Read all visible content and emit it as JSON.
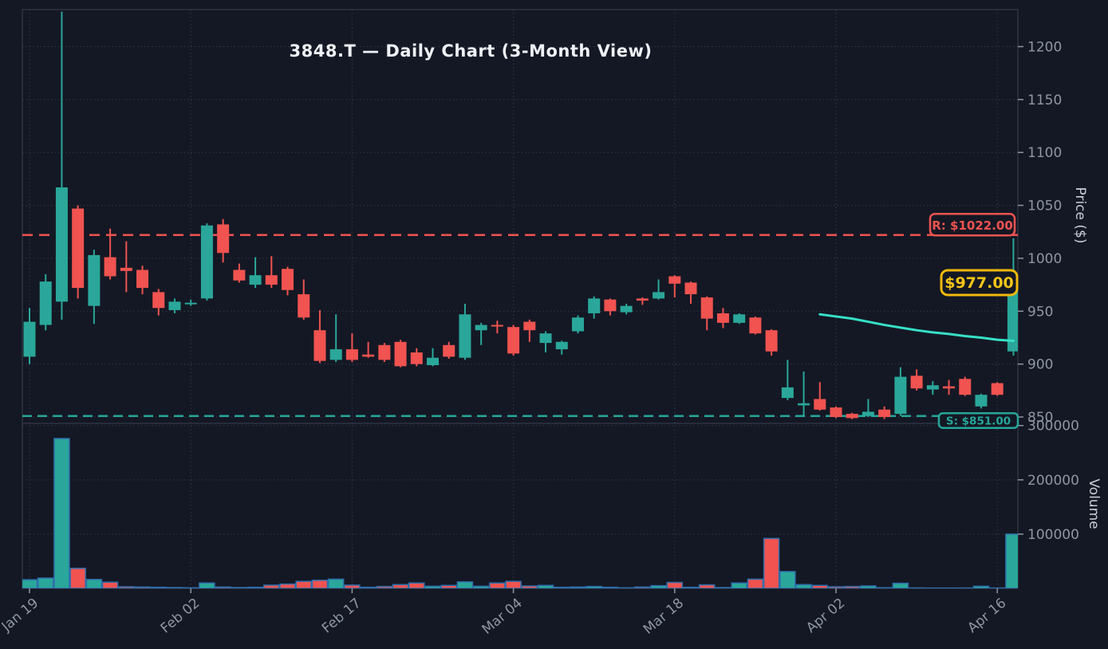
{
  "title": "3848.T — Daily Chart (3-Month View)",
  "y_axis": {
    "label": "Price ($)",
    "ticks": [
      1200,
      1150,
      1100,
      1050,
      1000,
      950,
      900,
      850
    ]
  },
  "volume_axis": {
    "label": "Volume",
    "ticks": [
      {
        "label": "300000",
        "value": 300000
      },
      {
        "label": "200000",
        "value": 200000
      },
      {
        "label": "100000",
        "value": 100000
      }
    ]
  },
  "x_axis": {
    "ticks": [
      {
        "label": "Jan 19",
        "index": 0
      },
      {
        "label": "Feb 02",
        "index": 10
      },
      {
        "label": "Feb 17",
        "index": 20
      },
      {
        "label": "Mar 04",
        "index": 30
      },
      {
        "label": "Mar 18",
        "index": 40
      },
      {
        "label": "Apr 02",
        "index": 50
      },
      {
        "label": "Apr 16",
        "index": 60
      }
    ]
  },
  "levels": {
    "resistance": {
      "label": "R: $1022.00",
      "value": 1022
    },
    "support": {
      "label": "S: $851.00",
      "value": 851
    },
    "last_price": {
      "label": "$977.00",
      "value": 977
    }
  },
  "colors": {
    "background": "#141824",
    "up": "#2aa79a",
    "down": "#f05350",
    "ma_line": "#36e0c8",
    "resistance": "#ef5350",
    "support": "#26a69a",
    "last_price_border": "#f0b90b",
    "last_price_text": "#f5c518",
    "grid": "#323846",
    "spine": "#3a4150",
    "tick_text": "#8f96a3",
    "volume_bar_edge": "#2f6fad"
  },
  "chart_data": {
    "type": "candlestick+volume",
    "title": "3848.T — Daily Chart (3-Month View)",
    "price_range": [
      844,
      1235
    ],
    "volume_range": [
      0,
      304000
    ],
    "legend": "none",
    "grid": "dotted",
    "candles_ohlcv": [
      [
        907,
        953,
        900,
        940,
        16000
      ],
      [
        937,
        985,
        932,
        978,
        19000
      ],
      [
        959,
        1233,
        942,
        1067,
        276000
      ],
      [
        1047,
        1050,
        962,
        972,
        37000
      ],
      [
        955,
        1008,
        938,
        1003,
        16500
      ],
      [
        1001,
        1028,
        980,
        983,
        11500
      ],
      [
        991,
        1016,
        968,
        988,
        3000
      ],
      [
        989,
        993,
        966,
        972,
        2500
      ],
      [
        968,
        971,
        946,
        953,
        2000
      ],
      [
        951,
        962,
        948,
        959,
        1500
      ],
      [
        958,
        961,
        955,
        958,
        1000
      ],
      [
        962,
        1033,
        960,
        1031,
        10000
      ],
      [
        1032,
        1037,
        996,
        1005,
        2500
      ],
      [
        989,
        995,
        977,
        979,
        1500
      ],
      [
        975,
        1001,
        972,
        984,
        2000
      ],
      [
        984,
        1002,
        972,
        975,
        6000
      ],
      [
        990,
        992,
        965,
        970,
        8000
      ],
      [
        966,
        980,
        942,
        944,
        13000
      ],
      [
        932,
        951,
        901,
        903,
        15000
      ],
      [
        904,
        947,
        902,
        914,
        17000
      ],
      [
        914,
        929,
        902,
        904,
        6000
      ],
      [
        909,
        921,
        906,
        907,
        2000
      ],
      [
        918,
        920,
        902,
        904,
        3500
      ],
      [
        921,
        923,
        897,
        898,
        7000
      ],
      [
        911,
        915,
        898,
        900,
        10000
      ],
      [
        899,
        915,
        898,
        906,
        4000
      ],
      [
        918,
        921,
        905,
        907,
        5500
      ],
      [
        906,
        957,
        904,
        947,
        12000
      ],
      [
        932,
        939,
        918,
        937,
        4000
      ],
      [
        937,
        941,
        929,
        936,
        10000
      ],
      [
        935,
        937,
        908,
        910,
        13000
      ],
      [
        940,
        942,
        921,
        932,
        4500
      ],
      [
        920,
        931,
        911,
        929,
        5500
      ],
      [
        914,
        922,
        909,
        921,
        2000
      ],
      [
        931,
        946,
        929,
        944,
        2500
      ],
      [
        948,
        964,
        943,
        962,
        3500
      ],
      [
        961,
        962,
        946,
        950,
        2000
      ],
      [
        949,
        957,
        947,
        955,
        1000
      ],
      [
        962,
        963,
        956,
        960,
        2500
      ],
      [
        962,
        980,
        961,
        968,
        5000
      ],
      [
        983,
        984,
        963,
        976,
        11000
      ],
      [
        977,
        978,
        957,
        966,
        2000
      ],
      [
        963,
        964,
        932,
        943,
        6500
      ],
      [
        948,
        953,
        934,
        939,
        1500
      ],
      [
        939,
        948,
        938,
        947,
        10000
      ],
      [
        944,
        945,
        928,
        929,
        17000
      ],
      [
        932,
        933,
        908,
        912,
        92000
      ],
      [
        868,
        904,
        866,
        878,
        31000
      ],
      [
        861,
        893,
        850,
        863,
        7000
      ],
      [
        867,
        883,
        856,
        857,
        5500
      ],
      [
        859,
        860,
        849,
        850,
        3000
      ],
      [
        853,
        854,
        848,
        849,
        3500
      ],
      [
        851,
        867,
        850,
        855,
        4500
      ],
      [
        857,
        860,
        848,
        850,
        1200
      ],
      [
        853,
        897,
        851,
        888,
        9500
      ],
      [
        889,
        895,
        875,
        877,
        800
      ],
      [
        876,
        884,
        871,
        880,
        600
      ],
      [
        879,
        885,
        871,
        877,
        600
      ],
      [
        886,
        888,
        870,
        871,
        700
      ],
      [
        860,
        872,
        858,
        871,
        4000
      ],
      [
        882,
        883,
        870,
        871,
        700
      ],
      [
        912,
        1019,
        908,
        977,
        100000
      ]
    ],
    "ma_line": {
      "start_index": 49,
      "values": [
        947,
        945,
        943,
        940,
        937,
        934.5,
        932,
        930,
        928.5,
        926.5,
        925,
        923,
        922
      ]
    }
  }
}
